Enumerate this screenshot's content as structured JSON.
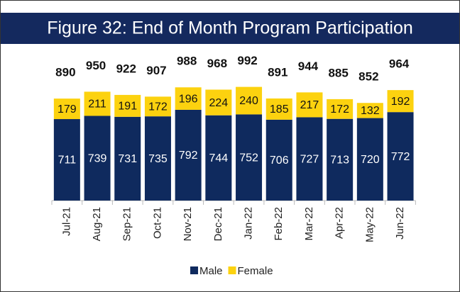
{
  "chart_data": {
    "type": "stacked-bar",
    "title": "Figure 32: End of Month Program Participation",
    "categories": [
      "Jul-21",
      "Aug-21",
      "Sep-21",
      "Oct-21",
      "Nov-21",
      "Dec-21",
      "Jan-22",
      "Feb-22",
      "Mar-22",
      "Apr-22",
      "May-22",
      "Jun-22"
    ],
    "series": [
      {
        "name": "Male",
        "color": "#0f2a5e",
        "values": [
          711,
          739,
          731,
          735,
          792,
          744,
          752,
          706,
          727,
          713,
          720,
          772
        ]
      },
      {
        "name": "Female",
        "color": "#fcd20f",
        "values": [
          179,
          211,
          191,
          172,
          196,
          224,
          240,
          185,
          217,
          172,
          132,
          192
        ]
      }
    ],
    "totals": [
      890,
      950,
      922,
      907,
      988,
      968,
      992,
      891,
      944,
      885,
      852,
      964
    ]
  }
}
